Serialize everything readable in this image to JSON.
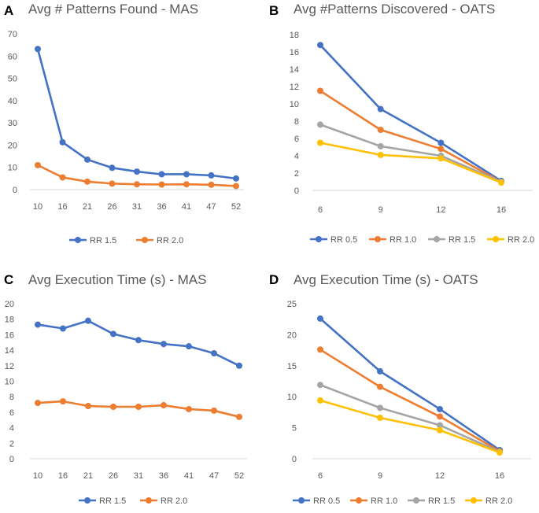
{
  "colors": {
    "blue": "#4472C4",
    "orange": "#ED7D31",
    "gray": "#A5A5A5",
    "yellow": "#FFC000",
    "axis": "#D9D9D9",
    "text": "#595959"
  },
  "chart_data": [
    {
      "panel": "A",
      "type": "line",
      "title": "Avg # Patterns Found - MAS",
      "categories": [
        "10",
        "16",
        "21",
        "26",
        "31",
        "36",
        "41",
        "47",
        "52"
      ],
      "yticks": [
        0,
        10,
        20,
        30,
        40,
        50,
        60,
        70
      ],
      "ylim": [
        0,
        70
      ],
      "series": [
        {
          "name": "RR 1.5",
          "color": "#4472C4",
          "values": [
            63.2,
            21.3,
            13.5,
            9.8,
            8.1,
            6.9,
            6.9,
            6.4,
            5.0
          ]
        },
        {
          "name": "RR 2.0",
          "color": "#ED7D31",
          "values": [
            11.0,
            5.5,
            3.6,
            2.7,
            2.4,
            2.3,
            2.4,
            2.2,
            1.6
          ]
        }
      ],
      "legend": "bottom"
    },
    {
      "panel": "B",
      "type": "line",
      "title": "Avg #Patterns Discovered - OATS",
      "categories": [
        "6",
        "9",
        "12",
        "16"
      ],
      "yticks": [
        0,
        2,
        4,
        6,
        8,
        10,
        12,
        14,
        16,
        18
      ],
      "ylim": [
        0,
        18
      ],
      "series": [
        {
          "name": "RR 0.5",
          "color": "#4472C4",
          "values": [
            16.8,
            9.4,
            5.5,
            1.1
          ]
        },
        {
          "name": "RR 1.0",
          "color": "#ED7D31",
          "values": [
            11.5,
            7.0,
            4.8,
            1.0
          ]
        },
        {
          "name": "RR 1.5",
          "color": "#A5A5A5",
          "values": [
            7.6,
            5.1,
            4.0,
            1.0
          ]
        },
        {
          "name": "RR 2.0",
          "color": "#FFC000",
          "values": [
            5.5,
            4.1,
            3.7,
            0.9
          ]
        }
      ],
      "legend": "bottom"
    },
    {
      "panel": "C",
      "type": "line",
      "title": "Avg Execution Time (s) - MAS",
      "categories": [
        "10",
        "16",
        "21",
        "26",
        "31",
        "36",
        "41",
        "47",
        "52"
      ],
      "yticks": [
        0,
        2,
        4,
        6,
        8,
        10,
        12,
        14,
        16,
        18,
        20
      ],
      "ylim": [
        0,
        20
      ],
      "series": [
        {
          "name": "RR 1.5",
          "color": "#4472C4",
          "values": [
            17.3,
            16.8,
            17.8,
            16.1,
            15.3,
            14.8,
            14.5,
            13.6,
            12.0
          ]
        },
        {
          "name": "RR 2.0",
          "color": "#ED7D31",
          "values": [
            7.2,
            7.4,
            6.8,
            6.7,
            6.7,
            6.9,
            6.4,
            6.2,
            5.4
          ]
        }
      ],
      "legend": "bottom"
    },
    {
      "panel": "D",
      "type": "line",
      "title": "Avg Execution Time (s) - OATS",
      "categories": [
        "6",
        "9",
        "12",
        "16"
      ],
      "yticks": [
        0,
        5,
        10,
        15,
        20,
        25
      ],
      "ylim": [
        0,
        25
      ],
      "series": [
        {
          "name": "RR 0.5",
          "color": "#4472C4",
          "values": [
            22.6,
            14.1,
            8.0,
            1.4
          ]
        },
        {
          "name": "RR 1.0",
          "color": "#ED7D31",
          "values": [
            17.6,
            11.6,
            6.8,
            1.2
          ]
        },
        {
          "name": "RR 1.5",
          "color": "#A5A5A5",
          "values": [
            11.9,
            8.2,
            5.4,
            1.1
          ]
        },
        {
          "name": "RR 2.0",
          "color": "#FFC000",
          "values": [
            9.4,
            6.6,
            4.6,
            1.0
          ]
        }
      ],
      "legend": "bottom"
    }
  ]
}
